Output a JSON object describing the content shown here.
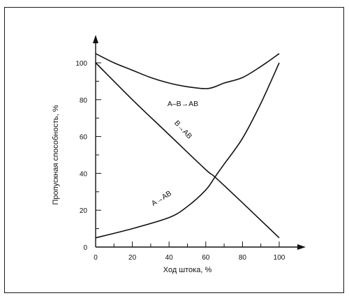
{
  "chart_data": {
    "type": "line",
    "title": "",
    "xlabel": "Ход штока, %",
    "ylabel": "Пропускная способность, %",
    "xlim": [
      0,
      100
    ],
    "ylim": [
      0,
      105
    ],
    "xticks": [
      0,
      20,
      40,
      60,
      80,
      100
    ],
    "yticks": [
      0,
      20,
      40,
      60,
      80,
      100
    ],
    "grid": false,
    "series": [
      {
        "name": "А–В→АВ",
        "x": [
          0,
          10,
          20,
          30,
          40,
          50,
          60,
          65,
          70,
          80,
          90,
          100
        ],
        "y": [
          105,
          100,
          96,
          92,
          89,
          87,
          86,
          87,
          89,
          92,
          98,
          105
        ]
      },
      {
        "name": "В→АВ",
        "x": [
          0,
          20,
          40,
          60,
          65,
          80,
          100
        ],
        "y": [
          100,
          80,
          61,
          42,
          38,
          24,
          5
        ]
      },
      {
        "name": "А→АВ",
        "x": [
          0,
          20,
          40,
          50,
          60,
          65,
          70,
          80,
          90,
          100
        ],
        "y": [
          5,
          10,
          16,
          22,
          31,
          38,
          45,
          59,
          78,
          100
        ]
      }
    ]
  }
}
